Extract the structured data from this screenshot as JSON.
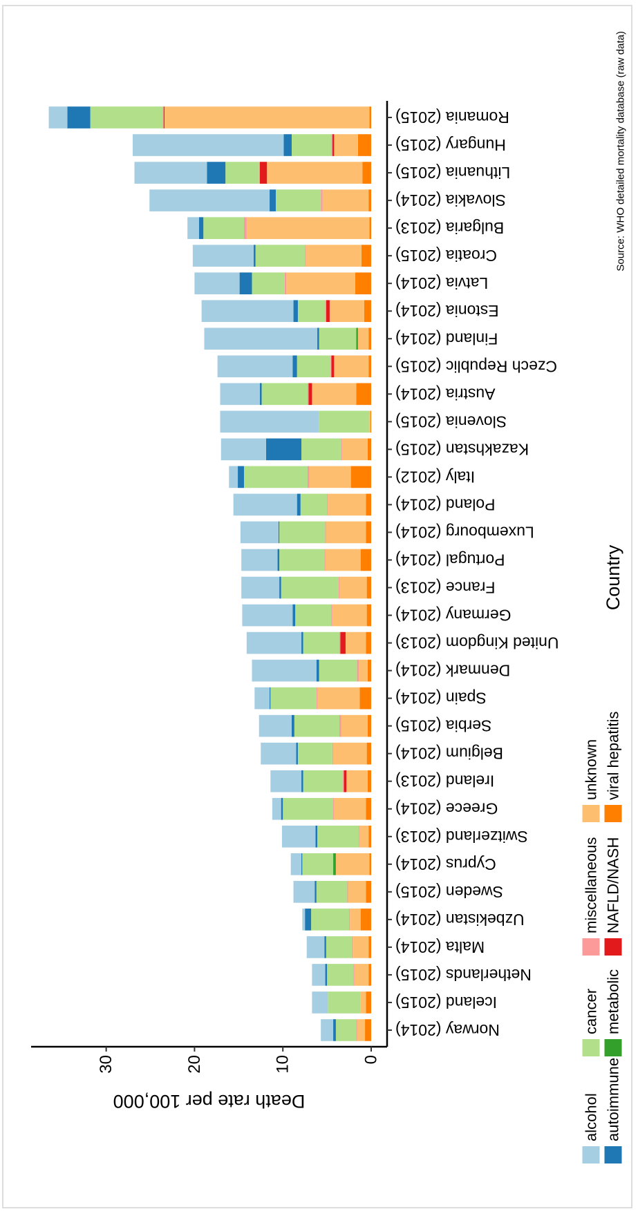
{
  "chart_data": {
    "type": "stacked_bar",
    "y_label": "Death rate per 100,000",
    "x_label": "Country",
    "source": "Source: WHO detailed mortality database (raw data)",
    "categories": [
      "Norway (2014)",
      "Iceland (2015)",
      "Netherlands (2015)",
      "Malta (2014)",
      "Uzbekistan (2014)",
      "Sweden (2015)",
      "Cyprus (2014)",
      "Switzerland (2013)",
      "Greece (2014)",
      "Ireland (2013)",
      "Belgium (2014)",
      "Serbia (2015)",
      "Spain (2014)",
      "Denmark (2014)",
      "United Kingdom (2013)",
      "Germany (2014)",
      "France (2013)",
      "Portugal (2014)",
      "Luxembourg (2014)",
      "Poland (2014)",
      "Italy (2012)",
      "Kazakhstan (2015)",
      "Slovenia (2015)",
      "Austria (2014)",
      "Czech Republic (2015)",
      "Finland (2014)",
      "Estonia (2014)",
      "Latvia (2014)",
      "Croatia (2015)",
      "Bulgaria (2013)",
      "Slovakia (2014)",
      "Lithuania (2015)",
      "Hungary (2015)",
      "Romania (2015)"
    ],
    "series": [
      {
        "name": "alcohol",
        "color": "#a6cee3",
        "values": [
          1.4,
          1.8,
          1.5,
          2.0,
          0.3,
          2.4,
          1.2,
          3.8,
          1.0,
          3.5,
          4.0,
          3.7,
          1.7,
          7.3,
          6.2,
          5.7,
          4.3,
          4.1,
          4.3,
          7.2,
          1.0,
          5.1,
          11.2,
          4.5,
          8.5,
          12.8,
          10.4,
          5.1,
          6.9,
          1.3,
          13.6,
          8.2,
          17.1,
          2.1
        ]
      },
      {
        "name": "autoimmune",
        "color": "#1f78b4",
        "values": [
          0.3,
          0,
          0.2,
          0.2,
          0.7,
          0.2,
          0.1,
          0.2,
          0.2,
          0.2,
          0.2,
          0.3,
          0.1,
          0.3,
          0.2,
          0.3,
          0.2,
          0.2,
          0.1,
          0.4,
          0.7,
          4.0,
          0,
          0.2,
          0.5,
          0.2,
          0.5,
          1.4,
          0.2,
          0.5,
          0.7,
          2.1,
          0.9,
          2.6
        ]
      },
      {
        "name": "cancer",
        "color": "#b2df8a",
        "values": [
          2.3,
          3.7,
          3.0,
          2.9,
          4.3,
          3.5,
          3.5,
          4.7,
          5.7,
          4.5,
          3.9,
          5.1,
          5.2,
          4.3,
          4.1,
          4.1,
          6.5,
          5.1,
          5.2,
          3.0,
          7.2,
          4.5,
          5.7,
          5.2,
          3.8,
          4.2,
          3.1,
          3.7,
          5.6,
          4.6,
          5.1,
          3.8,
          4.5,
          8.2
        ]
      },
      {
        "name": "metabolic",
        "color": "#33a02c",
        "values": [
          0,
          0,
          0,
          0,
          0,
          0,
          0.3,
          0,
          0,
          0,
          0,
          0,
          0,
          0,
          0,
          0,
          0,
          0,
          0,
          0,
          0,
          0,
          0,
          0,
          0,
          0.2,
          0,
          0,
          0,
          0,
          0,
          0,
          0,
          0
        ]
      },
      {
        "name": "miscellaneous",
        "color": "#fb9a99",
        "values": [
          0.1,
          0,
          0.1,
          0.1,
          0.1,
          0.1,
          0,
          0.1,
          0.1,
          0.1,
          0.1,
          0.2,
          0.1,
          0.2,
          0.1,
          0.1,
          0.1,
          0.1,
          0.1,
          0.1,
          0.2,
          0.1,
          0,
          0.1,
          0.1,
          0,
          0.1,
          0.2,
          0.1,
          0.3,
          0.2,
          0.1,
          0.1,
          0.1
        ]
      },
      {
        "name": "NAFLD/NASH",
        "color": "#e31a1c",
        "values": [
          0,
          0,
          0,
          0,
          0,
          0,
          0,
          0,
          0,
          0.3,
          0,
          0,
          0,
          0,
          0.6,
          0,
          0,
          0,
          0,
          0,
          0,
          0,
          0,
          0.4,
          0.3,
          0,
          0.4,
          0,
          0,
          0,
          0,
          0.8,
          0.2,
          0.1
        ]
      },
      {
        "name": "unknown",
        "color": "#fdbf6f",
        "values": [
          0.9,
          0.6,
          1.6,
          1.8,
          1.2,
          2.0,
          3.8,
          1.0,
          3.6,
          2.4,
          3.8,
          3.0,
          4.8,
          1.0,
          2.3,
          3.9,
          3.1,
          4.0,
          4.5,
          4.3,
          4.7,
          2.9,
          0.1,
          5.0,
          3.9,
          1.2,
          3.9,
          7.8,
          6.3,
          13.9,
          5.2,
          10.8,
          2.7,
          23.2
        ]
      },
      {
        "name": "viral hepatitis",
        "color": "#ff7f00",
        "values": [
          0.7,
          0.6,
          0.3,
          0.3,
          1.2,
          0.6,
          0.2,
          0.3,
          0.6,
          0.4,
          0.5,
          0.4,
          1.3,
          0.4,
          0.6,
          0.5,
          0.5,
          1.2,
          0.6,
          0.6,
          2.3,
          0.4,
          0.1,
          1.7,
          0.3,
          0.3,
          0.8,
          1.8,
          1.1,
          0.2,
          0.3,
          1.0,
          1.5,
          0.2
        ]
      }
    ],
    "ylim": [
      -1.8,
      38.5
    ],
    "yticks": [
      0,
      10,
      20,
      30
    ],
    "grid": false,
    "legend": "bottom"
  }
}
